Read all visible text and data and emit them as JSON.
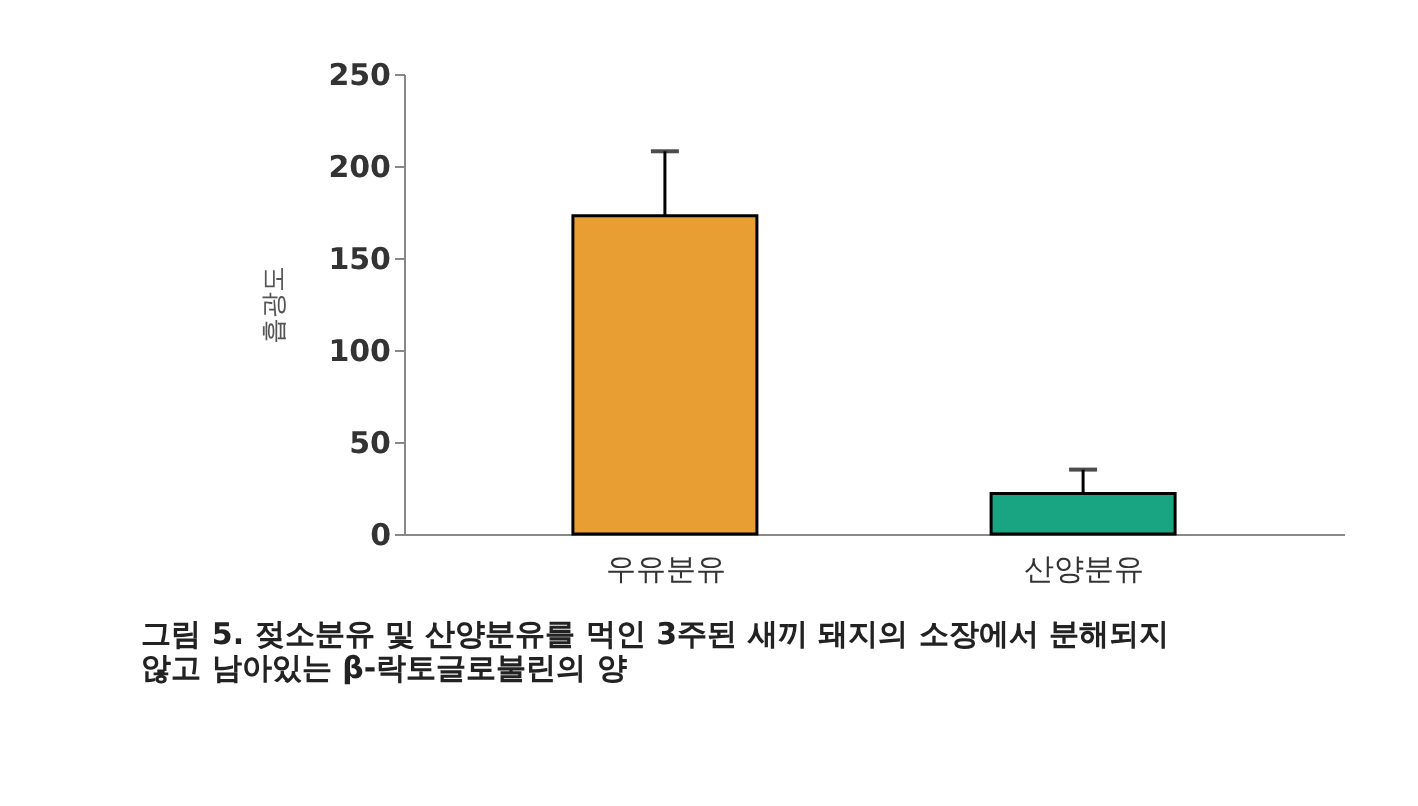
{
  "chart_data": {
    "type": "bar",
    "title": [
      "그림 5. 젖소분유 및 산양분유를 먹인 3주된 새끼 돼지의 소장에서 분해되지",
      "않고 남아있는 β-락토글로불린의 양"
    ],
    "ylabel": "흡광도",
    "categories": [
      "우유분유",
      "산양분유"
    ],
    "values": [
      173,
      22
    ],
    "colors": [
      "#e89e32",
      "#1aa582"
    ],
    "errors": [
      [
        173,
        208
      ],
      [
        22,
        35
      ]
    ],
    "ylim": [
      0,
      250
    ],
    "yticks": [
      0,
      50,
      100,
      150,
      200,
      250
    ],
    "grid": false
  }
}
